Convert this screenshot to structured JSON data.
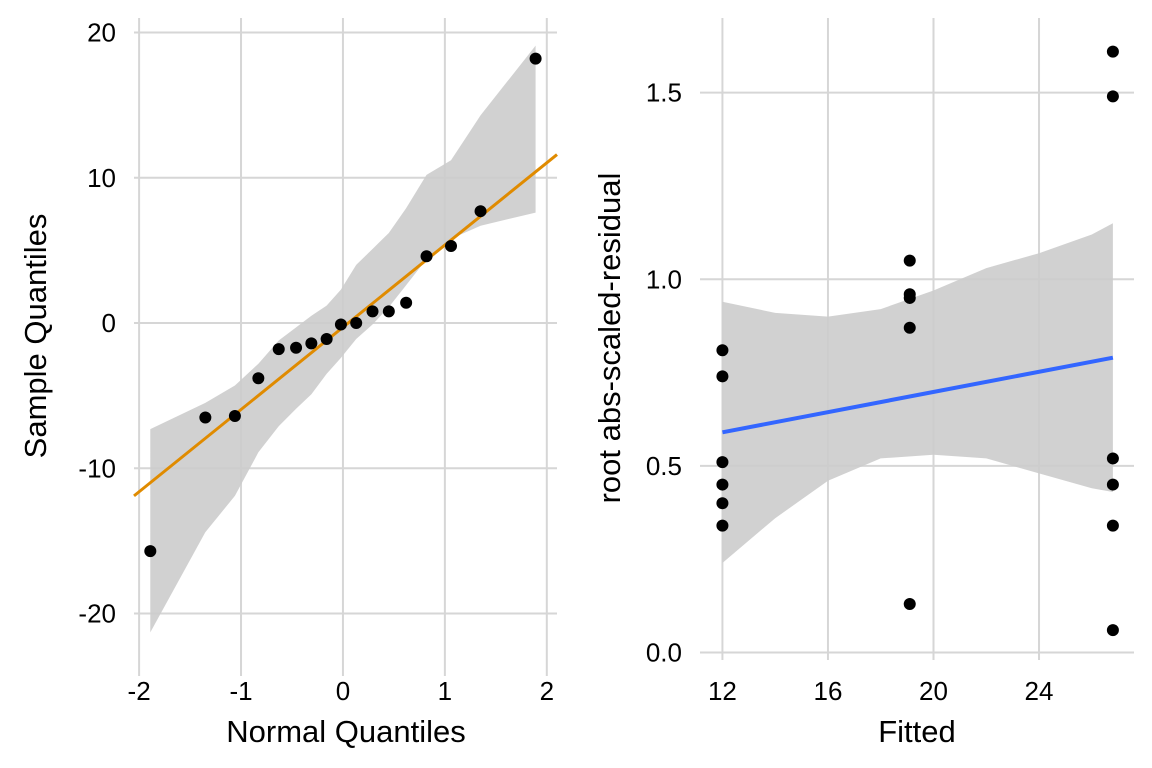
{
  "chart_data": [
    {
      "type": "scatter",
      "title": "",
      "xlabel": "Normal Quantiles",
      "ylabel": "Sample Quantiles",
      "xlim": [
        -2.05,
        2.1
      ],
      "ylim": [
        -24.3,
        21
      ],
      "x_ticks": [
        -2,
        -1,
        0,
        1,
        2
      ],
      "x_tick_labels": [
        "-2",
        "-1",
        "0",
        "1",
        "2"
      ],
      "y_ticks": [
        -20,
        -10,
        0,
        10,
        20
      ],
      "y_tick_labels": [
        "-20",
        "-10",
        "0",
        "10",
        "20"
      ],
      "grid": true,
      "colors": {
        "points": "#000000",
        "line": "#e08b00",
        "band": "#cccccc"
      },
      "points": [
        {
          "x": -1.89,
          "y": -15.7
        },
        {
          "x": -1.35,
          "y": -6.5
        },
        {
          "x": -1.06,
          "y": -6.4
        },
        {
          "x": -0.83,
          "y": -3.8
        },
        {
          "x": -0.63,
          "y": -1.8
        },
        {
          "x": -0.46,
          "y": -1.7
        },
        {
          "x": -0.31,
          "y": -1.4
        },
        {
          "x": -0.16,
          "y": -1.1
        },
        {
          "x": -0.02,
          "y": -0.1
        },
        {
          "x": 0.13,
          "y": 0.0
        },
        {
          "x": 0.29,
          "y": 0.8
        },
        {
          "x": 0.45,
          "y": 0.8
        },
        {
          "x": 0.62,
          "y": 1.4
        },
        {
          "x": 0.82,
          "y": 4.6
        },
        {
          "x": 1.06,
          "y": 5.3
        },
        {
          "x": 1.35,
          "y": 7.7
        },
        {
          "x": 1.89,
          "y": 18.2
        }
      ],
      "reference_line": {
        "x": [
          -2.05,
          2.1
        ],
        "y": [
          -11.9,
          11.6
        ]
      },
      "confidence_band": {
        "x": [
          -1.89,
          -1.35,
          -1.06,
          -0.83,
          -0.63,
          -0.46,
          -0.31,
          -0.16,
          -0.02,
          0.13,
          0.29,
          0.45,
          0.62,
          0.82,
          1.06,
          1.35,
          1.89
        ],
        "lower": [
          -21.3,
          -14.4,
          -11.9,
          -8.9,
          -7.1,
          -5.9,
          -4.9,
          -3.5,
          -2.4,
          -1.1,
          -0.1,
          1.1,
          2.6,
          4.4,
          5.8,
          6.7,
          7.6
        ],
        "upper": [
          -7.3,
          -5.5,
          -4.3,
          -2.8,
          -1.2,
          -0.3,
          0.5,
          1.2,
          2.3,
          4.0,
          5.1,
          6.2,
          7.9,
          10.2,
          11.2,
          14.3,
          19.1
        ]
      }
    },
    {
      "type": "scatter",
      "title": "",
      "xlabel": "Fitted",
      "ylabel": "root abs-scaled-residual",
      "xlim": [
        11.15,
        27.6
      ],
      "ylim": [
        -0.02,
        1.7
      ],
      "x_ticks": [
        12,
        16,
        20,
        24
      ],
      "x_tick_labels": [
        "12",
        "16",
        "20",
        "24"
      ],
      "y_ticks": [
        0.0,
        0.5,
        1.0,
        1.5
      ],
      "y_tick_labels": [
        "0.0",
        "0.5",
        "1.0",
        "1.5"
      ],
      "grid": true,
      "colors": {
        "points": "#000000",
        "line": "#3366ff",
        "band": "#cccccc"
      },
      "points": [
        {
          "x": 12.0,
          "y": 0.81
        },
        {
          "x": 12.0,
          "y": 0.74
        },
        {
          "x": 12.0,
          "y": 0.51
        },
        {
          "x": 12.0,
          "y": 0.45
        },
        {
          "x": 12.0,
          "y": 0.4
        },
        {
          "x": 12.0,
          "y": 0.34
        },
        {
          "x": 19.1,
          "y": 1.05
        },
        {
          "x": 19.1,
          "y": 0.96
        },
        {
          "x": 19.1,
          "y": 0.95
        },
        {
          "x": 19.1,
          "y": 0.87
        },
        {
          "x": 19.1,
          "y": 0.13
        },
        {
          "x": 26.8,
          "y": 1.61
        },
        {
          "x": 26.8,
          "y": 1.49
        },
        {
          "x": 26.8,
          "y": 0.52
        },
        {
          "x": 26.8,
          "y": 0.45
        },
        {
          "x": 26.8,
          "y": 0.34
        },
        {
          "x": 26.8,
          "y": 0.06
        }
      ],
      "reference_line": {
        "x": [
          12.0,
          26.8
        ],
        "y": [
          0.59,
          0.79
        ]
      },
      "confidence_band": {
        "x": [
          12.0,
          14.0,
          16.0,
          18.0,
          20.0,
          22.0,
          24.0,
          26.0,
          26.8
        ],
        "lower": [
          0.24,
          0.36,
          0.46,
          0.52,
          0.53,
          0.52,
          0.48,
          0.44,
          0.43
        ],
        "upper": [
          0.94,
          0.91,
          0.9,
          0.92,
          0.97,
          1.03,
          1.07,
          1.12,
          1.15
        ]
      }
    }
  ]
}
